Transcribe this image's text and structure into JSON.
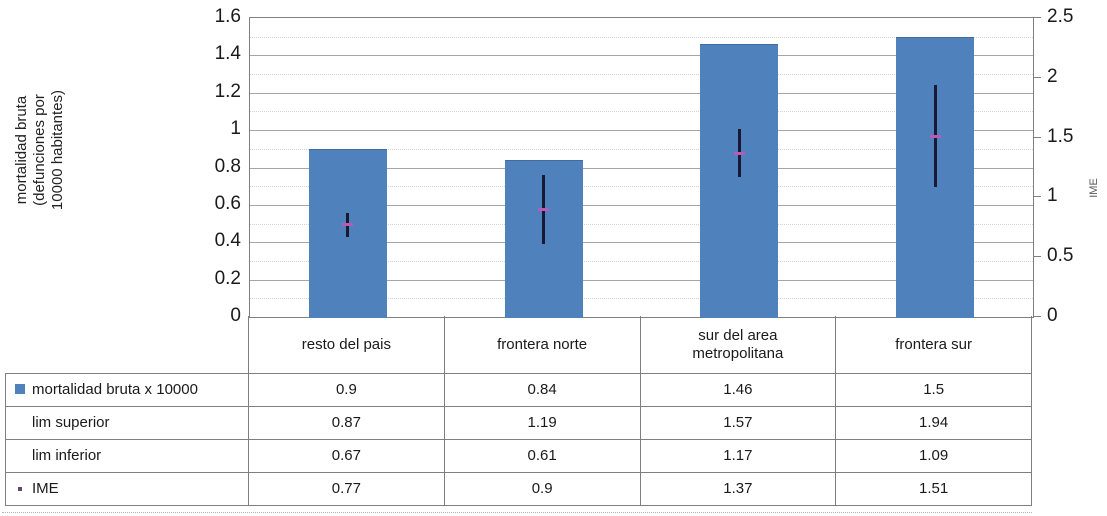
{
  "chart_data": {
    "type": "bar",
    "title": "",
    "categories": [
      "resto del pais",
      "frontera norte",
      "sur del area metropolitana",
      "frontera sur"
    ],
    "series": [
      {
        "name": "mortalidad bruta x 10000",
        "role": "bar",
        "axis": "left",
        "key": "square",
        "values": [
          0.9,
          0.84,
          1.46,
          1.5
        ]
      },
      {
        "name": "lim superior",
        "role": "error-top",
        "axis": "right",
        "key": "none",
        "values": [
          0.87,
          1.19,
          1.57,
          1.94
        ]
      },
      {
        "name": "lim inferior",
        "role": "error-bottom",
        "axis": "right",
        "key": "none",
        "values": [
          0.67,
          0.61,
          1.17,
          1.09
        ]
      },
      {
        "name": "IME",
        "role": "marker",
        "axis": "right",
        "key": "dot",
        "values": [
          0.77,
          0.9,
          1.37,
          1.51
        ]
      }
    ],
    "left_axis": {
      "title": "mortalidad bruta (defunciones por 10000 habitantes)",
      "title_lines": [
        "mortalidad bruta",
        "(defunciones por",
        "10000 habitantes)"
      ],
      "min": 0,
      "max": 1.6,
      "major_step": 0.2,
      "minor_step": 0.1,
      "ticks": [
        "1.6",
        "1.4",
        "1.2",
        "1",
        "0.8",
        "0.6",
        "0.4",
        "0.2",
        "0"
      ]
    },
    "right_axis": {
      "title": "IME",
      "min": 0,
      "max": 2.5,
      "major_step": 0.5,
      "ticks": [
        "2.5",
        "2",
        "1.5",
        "1",
        "0.5",
        "0"
      ]
    },
    "grid": {
      "major": "solid",
      "minor": "dotted"
    },
    "legend_position": "table-row-labels",
    "colors": {
      "bar": "#4f81bd",
      "error_line": "#191933",
      "ime_marker": "#b75bb7",
      "ime_key": "#5f497a",
      "grid_major": "#a6a6a6",
      "grid_minor": "#d4d4d4",
      "border": "#7f7f7f"
    }
  }
}
